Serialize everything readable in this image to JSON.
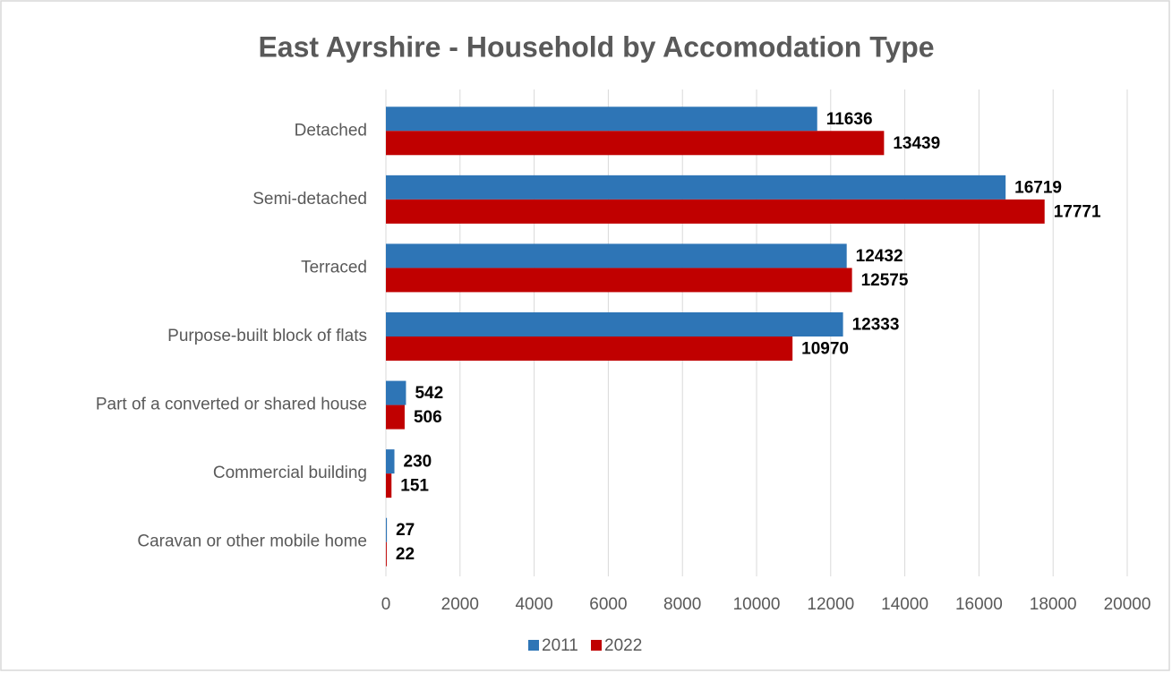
{
  "chart_data": {
    "type": "hbar",
    "title": "East Ayrshire - Household by Accomodation Type",
    "categories": [
      "Detached",
      "Semi-detached",
      "Terraced",
      "Purpose-built block of flats",
      "Part of a converted or shared house",
      "Commercial building",
      "Caravan or other mobile home"
    ],
    "series": [
      {
        "name": "2011",
        "color": "#2e75b6",
        "values": [
          11636,
          16719,
          12432,
          12333,
          542,
          230,
          27
        ]
      },
      {
        "name": "2022",
        "color": "#c00000",
        "values": [
          13439,
          17771,
          12575,
          10970,
          506,
          151,
          22
        ]
      }
    ],
    "xlim": [
      0,
      20000
    ],
    "xticks": [
      0,
      2000,
      4000,
      6000,
      8000,
      10000,
      12000,
      14000,
      16000,
      18000,
      20000
    ],
    "grid": true,
    "legend": "bottom"
  }
}
